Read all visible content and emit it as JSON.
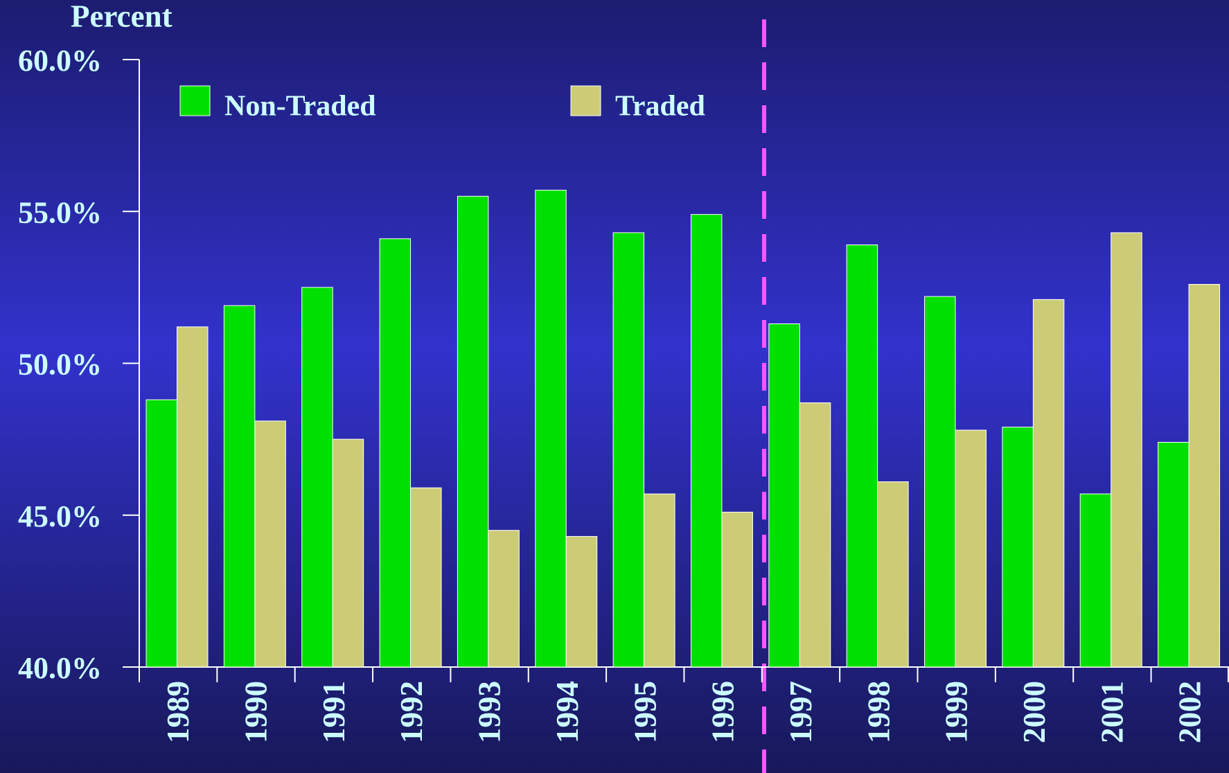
{
  "chart_data": {
    "type": "bar",
    "y_label": "Percent",
    "categories": [
      "1989",
      "1990",
      "1991",
      "1992",
      "1993",
      "1994",
      "1995",
      "1996",
      "1997",
      "1998",
      "1999",
      "2000",
      "2001",
      "2002"
    ],
    "series": [
      {
        "name": "Non-Traded",
        "color": "#00e000",
        "values": [
          48.8,
          51.9,
          52.5,
          54.1,
          55.5,
          55.7,
          54.3,
          54.9,
          51.3,
          53.9,
          52.2,
          47.9,
          45.7,
          47.4
        ]
      },
      {
        "name": "Traded",
        "color": "#cccc77",
        "values": [
          51.2,
          48.1,
          47.5,
          45.9,
          44.5,
          44.3,
          45.7,
          45.1,
          48.7,
          46.1,
          47.8,
          52.1,
          54.3,
          52.6
        ]
      }
    ],
    "ylim": [
      40,
      60
    ],
    "yticks": [
      {
        "value": 40,
        "label": "40.0%"
      },
      {
        "value": 45,
        "label": "45.0%"
      },
      {
        "value": 50,
        "label": "50.0%"
      },
      {
        "value": 55,
        "label": "55.0%"
      },
      {
        "value": 60,
        "label": "60.0%"
      }
    ]
  }
}
